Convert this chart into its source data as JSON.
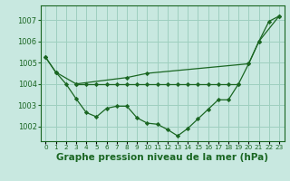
{
  "bg_color": "#c8e8e0",
  "grid_color": "#9ecfbf",
  "line_color": "#1a6622",
  "xlabel": "Graphe pression niveau de la mer (hPa)",
  "xlabel_fontsize": 7.5,
  "ylabel_ticks": [
    1002,
    1003,
    1004,
    1005,
    1006,
    1007
  ],
  "xtick_labels": [
    "0",
    "1",
    "2",
    "3",
    "4",
    "5",
    "6",
    "7",
    "8",
    "9",
    "10",
    "11",
    "12",
    "13",
    "14",
    "15",
    "16",
    "17",
    "18",
    "19",
    "20",
    "21",
    "22",
    "23"
  ],
  "xticks": [
    0,
    1,
    2,
    3,
    4,
    5,
    6,
    7,
    8,
    9,
    10,
    11,
    12,
    13,
    14,
    15,
    16,
    17,
    18,
    19,
    20,
    21,
    22,
    23
  ],
  "xlim": [
    -0.5,
    23.5
  ],
  "ylim": [
    1001.3,
    1007.7
  ],
  "series_upper": [
    1005.25,
    1004.55,
    null,
    1004.0,
    null,
    null,
    null,
    null,
    1004.3,
    null,
    1004.5,
    null,
    null,
    null,
    null,
    null,
    null,
    null,
    null,
    null,
    1004.95,
    1006.0,
    null,
    1007.2
  ],
  "series_flat": [
    null,
    null,
    null,
    1004.0,
    1004.0,
    1004.0,
    1004.0,
    1004.0,
    1004.0,
    1004.0,
    1004.0,
    1004.0,
    1004.0,
    1004.0,
    1004.0,
    1004.0,
    1004.0,
    1004.0,
    1004.0,
    1004.0,
    null,
    null,
    null,
    null
  ],
  "series_lower": [
    1005.25,
    1004.55,
    1004.0,
    1003.3,
    1002.65,
    1002.45,
    1002.85,
    1002.95,
    1002.95,
    1002.4,
    1002.15,
    1002.1,
    1001.85,
    1001.55,
    1001.9,
    1002.35,
    1002.8,
    1003.25,
    1003.25,
    1004.0,
    1004.95,
    1006.0,
    1006.95,
    1007.2
  ]
}
